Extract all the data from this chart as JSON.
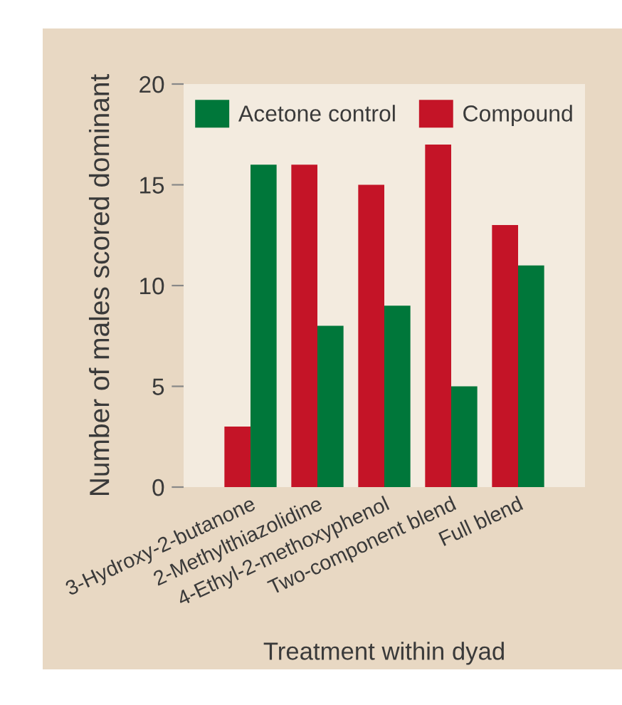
{
  "chart_data": {
    "type": "bar",
    "xlabel": "Treatment within dyad",
    "ylabel": "Number of males scored dominant",
    "categories": [
      "3-Hydroxy-2-butanone",
      "2-Methylthiazolidine",
      "4-Ethyl-2-methoxyphenol",
      "Two-component blend",
      "Full blend"
    ],
    "series": [
      {
        "name": "Compound",
        "color": "#c41427",
        "values": [
          3,
          16,
          15,
          17,
          13
        ]
      },
      {
        "name": "Acetone control",
        "color": "#00773a",
        "values": [
          16,
          8,
          9,
          5,
          11
        ]
      }
    ],
    "ylim": [
      0,
      20
    ],
    "yticks": [
      0,
      5,
      10,
      15,
      20
    ],
    "grid": false,
    "legend": "top"
  }
}
